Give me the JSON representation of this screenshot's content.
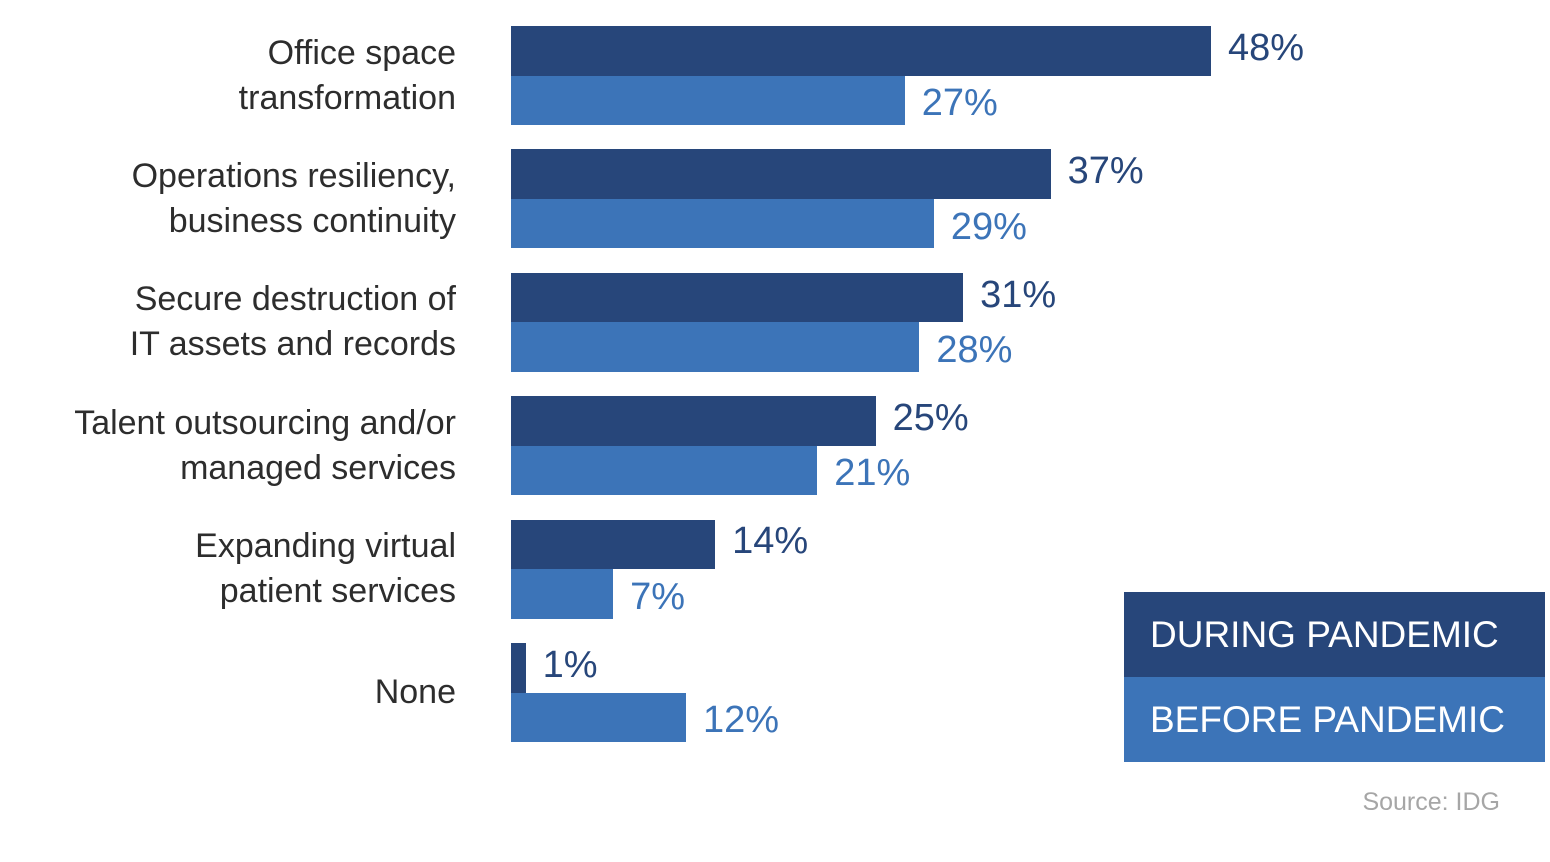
{
  "chart_data": {
    "type": "bar",
    "orientation": "horizontal",
    "categories": [
      "Office space\ntransformation",
      "Operations resiliency,\nbusiness continuity",
      "Secure destruction of\nIT assets and records",
      "Talent outsourcing and/or\nmanaged services",
      "Expanding virtual\npatient services",
      "None"
    ],
    "series": [
      {
        "name": "DURING PANDEMIC",
        "color": "#27467a",
        "values": [
          48,
          37,
          31,
          25,
          14,
          1
        ],
        "value_labels": [
          "48%",
          "37%",
          "31%",
          "25%",
          "14%",
          "1%"
        ]
      },
      {
        "name": "BEFORE PANDEMIC",
        "color": "#3c74b8",
        "values": [
          27,
          29,
          28,
          21,
          7,
          12
        ],
        "value_labels": [
          "27%",
          "29%",
          "28%",
          "21%",
          "7%",
          "12%"
        ]
      }
    ],
    "source": "Source: IDG"
  }
}
